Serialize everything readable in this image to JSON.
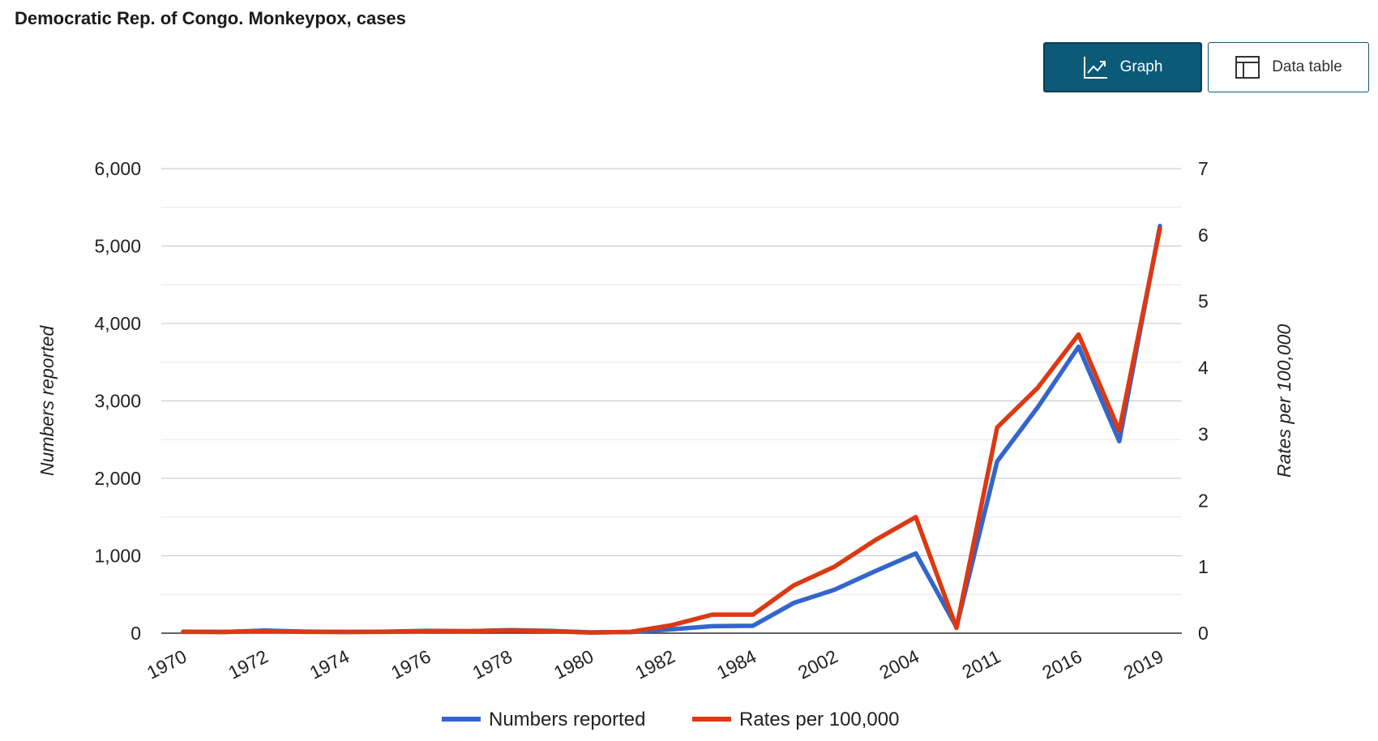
{
  "page": {
    "title": "Democratic Rep. of Congo. Monkeypox, cases"
  },
  "toolbar": {
    "graph_label": "Graph",
    "table_label": "Data table"
  },
  "icons": {
    "graph": "trend-chart-icon",
    "table": "table-icon"
  },
  "colors": {
    "button_active": "#0b5a78",
    "series_numbers": "#3366cc",
    "series_rates": "#dc3912",
    "grid": "#d9d9d9"
  },
  "chart_data": {
    "type": "line",
    "x": [
      "1970",
      "1971",
      "1972",
      "1973",
      "1974",
      "1975",
      "1976",
      "1977",
      "1978",
      "1979",
      "1980",
      "1981",
      "1982",
      "1983",
      "1984",
      "1985",
      "2002",
      "2003",
      "2004",
      "2005",
      "2011",
      "2015",
      "2016",
      "2018",
      "2019"
    ],
    "x_tick_labels": [
      "1970",
      "1972",
      "1974",
      "1976",
      "1978",
      "1980",
      "1982",
      "1984",
      "2002",
      "2004",
      "2011",
      "2016",
      "2019"
    ],
    "series": [
      {
        "name": "Numbers reported",
        "axis": "left",
        "color": "#3366cc",
        "values": [
          20,
          15,
          35,
          20,
          15,
          20,
          30,
          25,
          40,
          30,
          10,
          15,
          50,
          90,
          95,
          390,
          560,
          800,
          1030,
          80,
          2220,
          2920,
          3700,
          2480,
          5260
        ]
      },
      {
        "name": "Rates per 100,000",
        "axis": "right",
        "color": "#dc3912",
        "values": [
          0.02,
          0.02,
          0.03,
          0.02,
          0.02,
          0.02,
          0.03,
          0.03,
          0.04,
          0.03,
          0.01,
          0.02,
          0.12,
          0.28,
          0.28,
          0.72,
          1.0,
          1.4,
          1.75,
          0.08,
          3.1,
          3.7,
          4.5,
          3.05,
          6.1
        ]
      }
    ],
    "y_left": {
      "label": "Numbers reported",
      "min": 0,
      "max": 6000,
      "ticks": [
        "0",
        "1,000",
        "2,000",
        "3,000",
        "4,000",
        "5,000",
        "6,000"
      ]
    },
    "y_right": {
      "label": "Rates per 100,000",
      "min": 0,
      "max": 7,
      "ticks": [
        "0",
        "1",
        "2",
        "3",
        "4",
        "5",
        "6",
        "7"
      ]
    },
    "grid": true,
    "legend_position": "bottom"
  }
}
